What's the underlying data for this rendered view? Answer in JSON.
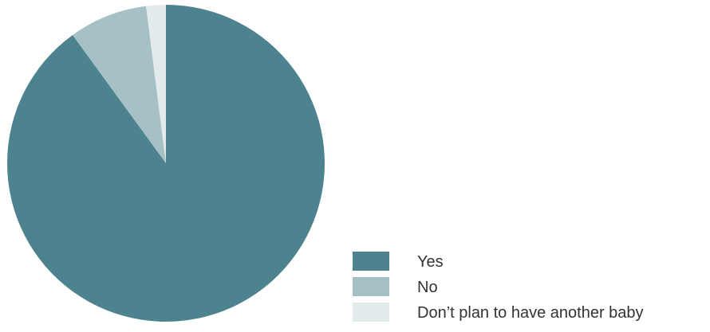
{
  "chart_data": {
    "type": "pie",
    "slices": [
      {
        "label": "Yes",
        "value": 90,
        "color": "#4d838e"
      },
      {
        "label": "No",
        "value": 8,
        "color": "#a6c1c5"
      },
      {
        "label": "Don’t plan to have another baby",
        "value": 2,
        "color": "#e2eaec"
      }
    ],
    "start_angle": "12 o'clock",
    "direction": "clockwise",
    "legend_position": "bottom-right"
  }
}
